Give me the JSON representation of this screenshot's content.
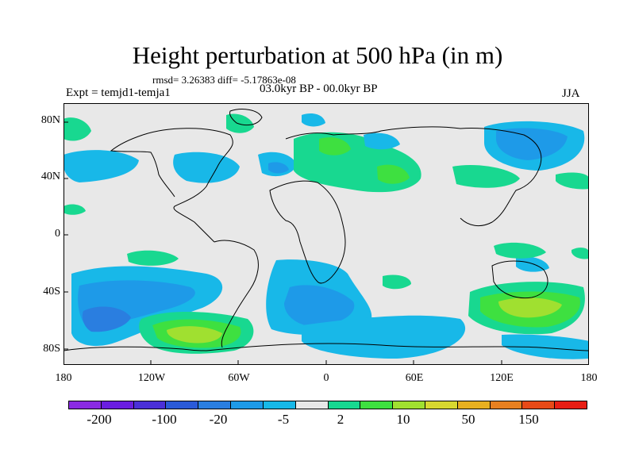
{
  "title": "Height perturbation at 500 hPa (in m)",
  "stats": "rmsd= 3.26383 diff= -5.17863e-08",
  "expt": "Expt = temjd1-temja1",
  "period": "03.0kyr BP - 00.0kyr BP",
  "season": "JJA",
  "lat_labels": [
    "80N",
    "40N",
    "0",
    "40S",
    "80S"
  ],
  "lon_labels": [
    "180",
    "120W",
    "60W",
    "0",
    "60E",
    "120E",
    "180"
  ],
  "colorbar": {
    "colors": [
      "#8a2be2",
      "#6a1ee0",
      "#4a30d8",
      "#2a5ad8",
      "#2a7ee0",
      "#1e9ae8",
      "#18b8e8",
      "#e8e8e8",
      "#18d890",
      "#3ee040",
      "#a0e030",
      "#d8d830",
      "#e8b020",
      "#e88020",
      "#e84a18",
      "#e81e14"
    ],
    "labels": [
      "-200",
      "-100",
      "-20",
      "-5",
      "2",
      "10",
      "50",
      "150"
    ]
  },
  "map_colors": {
    "background": "#e8e8e8",
    "cyan": "#18b8e8",
    "light_blue": "#1e9ae8",
    "blue": "#2a7ee0",
    "green": "#18d890",
    "bright_green": "#3ee040",
    "yellow_green": "#a0e030",
    "coast": "#000000"
  }
}
